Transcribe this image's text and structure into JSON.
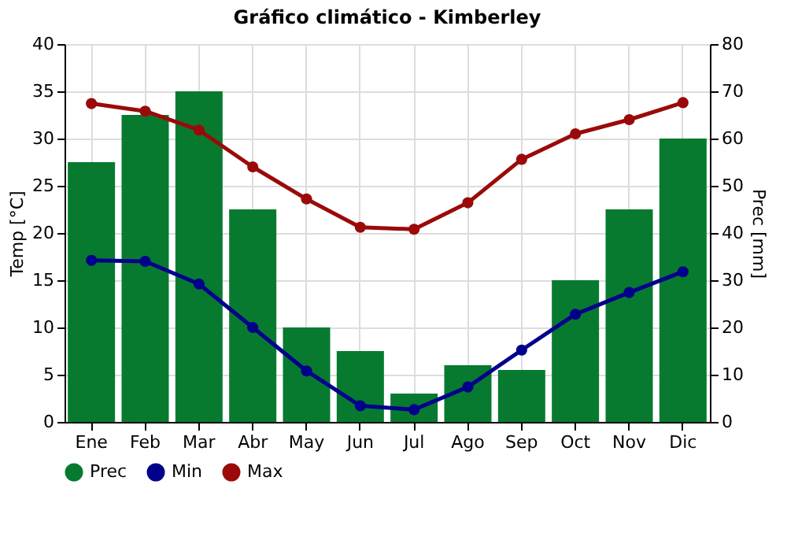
{
  "chart_data": {
    "type": "bar",
    "title": "Gráfico climático - Kimberley",
    "ylabel": "Temp [°C]",
    "y2label": "Prec [mm]",
    "categories": [
      "Ene",
      "Feb",
      "Mar",
      "Abr",
      "May",
      "Jun",
      "Jul",
      "Ago",
      "Sep",
      "Oct",
      "Nov",
      "Dic"
    ],
    "series": [
      {
        "name": "Prec",
        "axis": "y2",
        "color": "#077a30",
        "values": [
          55,
          65,
          70,
          45,
          20,
          15,
          6,
          12,
          11,
          30,
          45,
          60
        ]
      },
      {
        "name": "Min",
        "type": "line",
        "color": "#00008b",
        "values": [
          17.1,
          17.0,
          14.6,
          10.0,
          5.4,
          1.7,
          1.3,
          3.7,
          7.6,
          11.4,
          13.7,
          15.9
        ]
      },
      {
        "name": "Max",
        "type": "line",
        "color": "#9b0a0a",
        "values": [
          33.7,
          32.9,
          30.9,
          27.0,
          23.6,
          20.6,
          20.4,
          23.2,
          27.8,
          30.5,
          32.0,
          33.8
        ]
      }
    ],
    "ylim": [
      0,
      40
    ],
    "yticks": [
      0,
      5,
      10,
      15,
      20,
      25,
      30,
      35,
      40
    ],
    "y2lim": [
      0,
      80
    ],
    "y2ticks": [
      0,
      10,
      20,
      30,
      40,
      50,
      60,
      70,
      80
    ],
    "grid": true,
    "legend": "bottom left",
    "marker": "circle",
    "line_style": "solid"
  }
}
